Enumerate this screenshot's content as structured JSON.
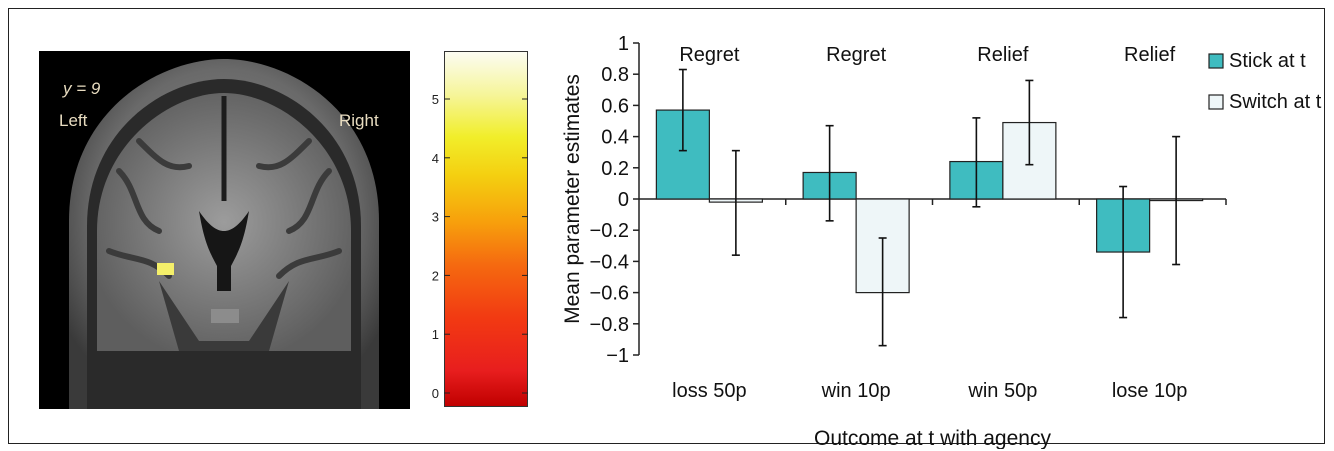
{
  "brain": {
    "coordinate_label": "y = 9",
    "left_label": "Left",
    "right_label": "Right"
  },
  "colorbar": {
    "ticks": [
      "0",
      "1",
      "2",
      "3",
      "4",
      "5"
    ]
  },
  "chart_data": {
    "type": "bar",
    "categories": [
      "loss 50p",
      "win 10p",
      "win 50p",
      "lose 10p"
    ],
    "category_headers": [
      "Regret",
      "Regret",
      "Relief",
      "Relief"
    ],
    "series": [
      {
        "name": "Stick at t",
        "color": "#3fbcc0",
        "values": [
          0.57,
          0.17,
          0.24,
          -0.34
        ],
        "error": [
          [
            0.31,
            0.83
          ],
          [
            -0.14,
            0.47
          ],
          [
            -0.05,
            0.52
          ],
          [
            -0.76,
            0.08
          ]
        ]
      },
      {
        "name": "Switch at t",
        "color": "#eef6f8",
        "values": [
          -0.02,
          -0.6,
          0.49,
          -0.01
        ],
        "error": [
          [
            -0.36,
            0.31
          ],
          [
            -0.94,
            -0.25
          ],
          [
            0.22,
            0.76
          ],
          [
            -0.42,
            0.4
          ]
        ]
      }
    ],
    "ylabel": "Mean parameter estimates",
    "xlabel": "Outcome at t with agency",
    "ylim": [
      -1,
      1
    ],
    "yticks": [
      "1",
      "0.8",
      "0.6",
      "0.4",
      "0.2",
      "0",
      "−0.2",
      "−0.4",
      "−0.6",
      "−0.8",
      "−1"
    ],
    "legend_placement": "top-right",
    "grid": false
  }
}
